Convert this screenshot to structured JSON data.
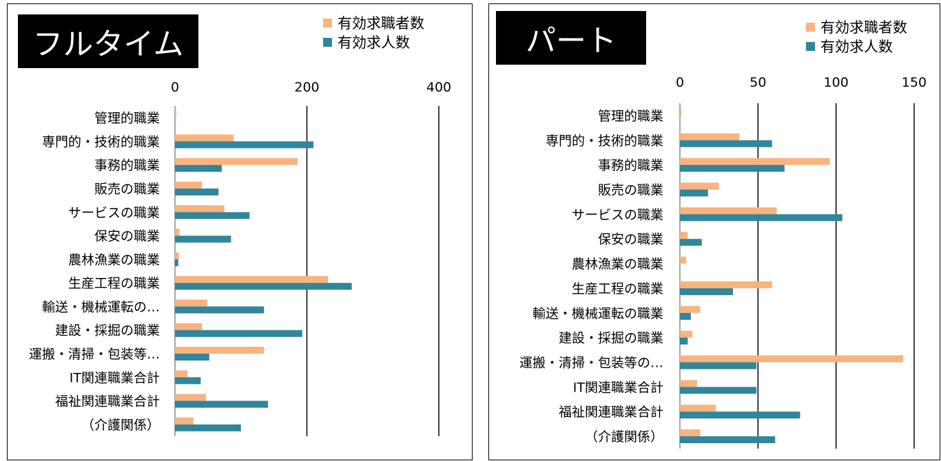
{
  "colors": {
    "seekers": "#F9B37E",
    "openings": "#31859C",
    "axis": "#000000",
    "title_bg": "#000000"
  },
  "chart_data": [
    {
      "type": "bar",
      "orientation": "horizontal",
      "title": "フルタイム",
      "categories": [
        "管理的職業",
        "専門的・技術的職業",
        "事務的職業",
        "販売の職業",
        "サービスの職業",
        "保安の職業",
        "農林漁業の職業",
        "生産工程の職業",
        "輸送・機械運転の…",
        "建設・採掘の職業",
        "運搬・清掃・包装等…",
        "IT関連職業合計",
        "福祉関連職業合計",
        "（介護関係）"
      ],
      "series": [
        {
          "name": "有効求職者数",
          "values": [
            2,
            89,
            186,
            41,
            75,
            7,
            6,
            232,
            49,
            41,
            135,
            19,
            47,
            28
          ]
        },
        {
          "name": "有効求人数",
          "values": [
            0,
            210,
            71,
            66,
            113,
            85,
            5,
            268,
            135,
            193,
            52,
            39,
            141,
            100
          ]
        }
      ],
      "xlim": [
        0,
        400
      ],
      "ticks": [
        "0",
        "200",
        "400"
      ],
      "legend_position": "top-right",
      "grid": true
    },
    {
      "type": "bar",
      "orientation": "horizontal",
      "title": "パート",
      "categories": [
        "管理的職業",
        "専門的・技術的職業",
        "事務的職業",
        "販売の職業",
        "サービスの職業",
        "保安の職業",
        "農林漁業の職業",
        "生産工程の職業",
        "輸送・機械運転の職業",
        "建設・採掘の職業",
        "運搬・清掃・包装等の…",
        "IT関連職業合計",
        "福祉関連職業合計",
        "（介護関係）"
      ],
      "series": [
        {
          "name": "有効求職者数",
          "values": [
            1,
            38,
            96,
            25,
            62,
            5,
            4,
            59,
            13,
            8,
            143,
            11,
            23,
            13
          ]
        },
        {
          "name": "有効求人数",
          "values": [
            0,
            59,
            67,
            18,
            104,
            14,
            0,
            34,
            7,
            5,
            49,
            49,
            77,
            61
          ]
        }
      ],
      "xlim": [
        0,
        150
      ],
      "ticks": [
        "0",
        "50",
        "100",
        "150"
      ],
      "legend_position": "top-right",
      "grid": true
    }
  ]
}
